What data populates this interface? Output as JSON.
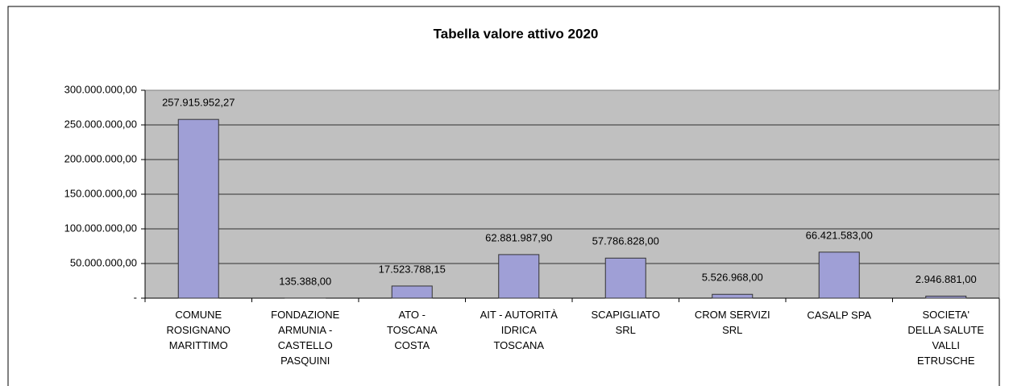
{
  "chart_data": {
    "type": "bar",
    "title": "Tabella valore attivo 2020",
    "categories": [
      "COMUNE\nROSIGNANO\nMARITTIMO",
      "FONDAZIONE\nARMUNIA -\nCASTELLO\nPASQUINI",
      "ATO -\nTOSCANA\nCOSTA",
      "AIT - AUTORITÀ\nIDRICA\nTOSCANA",
      "SCAPIGLIATO\nSRL",
      "CROM SERVIZI\nSRL",
      "CASALP SPA",
      "SOCIETA'\nDELLA SALUTE\nVALLI\nETRUSCHE"
    ],
    "values": [
      257915952.27,
      135388,
      17523788.15,
      62881987.9,
      57786828,
      5526968,
      66421583,
      2946881
    ],
    "value_labels": [
      "257.915.952,27",
      "135.388,00",
      "17.523.788,15",
      "62.881.987,90",
      "57.786.828,00",
      "5.526.968,00",
      "66.421.583,00",
      "2.946.881,00"
    ],
    "color": "#9f9fd6",
    "ylim": [
      0,
      300000000
    ],
    "yticks": [
      {
        "value": 0,
        "label": "-"
      },
      {
        "value": 50000000,
        "label": "50.000.000,00"
      },
      {
        "value": 100000000,
        "label": "100.000.000,00"
      },
      {
        "value": 150000000,
        "label": "150.000.000,00"
      },
      {
        "value": 200000000,
        "label": "200.000.000,00"
      },
      {
        "value": 250000000,
        "label": "250.000.000,00"
      },
      {
        "value": 300000000,
        "label": "300.000.000,00"
      }
    ],
    "grid": true
  }
}
